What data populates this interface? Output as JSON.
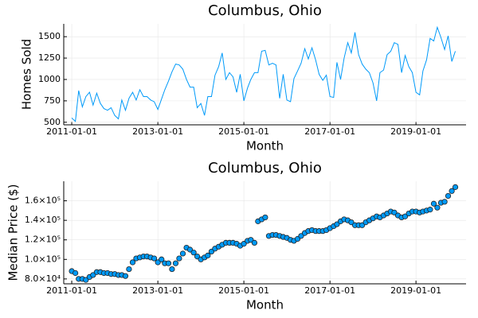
{
  "chart_data": [
    {
      "type": "line",
      "title": "Columbus, Ohio",
      "x_label": "Month",
      "y_label": "Homes Sold",
      "color": "#009af9",
      "grid": true,
      "x": [
        "2011-01-01",
        "2011-02-01",
        "2011-03-01",
        "2011-04-01",
        "2011-05-01",
        "2011-06-01",
        "2011-07-01",
        "2011-08-01",
        "2011-09-01",
        "2011-10-01",
        "2011-11-01",
        "2011-12-01",
        "2012-01-01",
        "2012-02-01",
        "2012-03-01",
        "2012-04-01",
        "2012-05-01",
        "2012-06-01",
        "2012-07-01",
        "2012-08-01",
        "2012-09-01",
        "2012-10-01",
        "2012-11-01",
        "2012-12-01",
        "2013-01-01",
        "2013-02-01",
        "2013-03-01",
        "2013-04-01",
        "2013-05-01",
        "2013-06-01",
        "2013-07-01",
        "2013-08-01",
        "2013-09-01",
        "2013-10-01",
        "2013-11-01",
        "2013-12-01",
        "2014-01-01",
        "2014-02-01",
        "2014-03-01",
        "2014-04-01",
        "2014-05-01",
        "2014-06-01",
        "2014-07-01",
        "2014-08-01",
        "2014-09-01",
        "2014-10-01",
        "2014-11-01",
        "2014-12-01",
        "2015-01-01",
        "2015-02-01",
        "2015-03-01",
        "2015-04-01",
        "2015-05-01",
        "2015-06-01",
        "2015-07-01",
        "2015-08-01",
        "2015-09-01",
        "2015-10-01",
        "2015-11-01",
        "2015-12-01",
        "2016-01-01",
        "2016-02-01",
        "2016-03-01",
        "2016-04-01",
        "2016-05-01",
        "2016-06-01",
        "2016-07-01",
        "2016-08-01",
        "2016-09-01",
        "2016-10-01",
        "2016-11-01",
        "2016-12-01",
        "2017-01-01",
        "2017-02-01",
        "2017-03-01",
        "2017-04-01",
        "2017-05-01",
        "2017-06-01",
        "2017-07-01",
        "2017-08-01",
        "2017-09-01",
        "2017-10-01",
        "2017-11-01",
        "2017-12-01",
        "2018-01-01",
        "2018-02-01",
        "2018-03-01",
        "2018-04-01",
        "2018-05-01",
        "2018-06-01",
        "2018-07-01",
        "2018-08-01",
        "2018-09-01",
        "2018-10-01",
        "2018-11-01",
        "2018-12-01",
        "2019-01-01",
        "2019-02-01",
        "2019-03-01",
        "2019-04-01",
        "2019-05-01",
        "2019-06-01",
        "2019-07-01",
        "2019-08-01",
        "2019-09-01",
        "2019-10-01",
        "2019-11-01",
        "2019-12-01"
      ],
      "values": [
        550,
        510,
        870,
        680,
        800,
        850,
        700,
        840,
        720,
        660,
        640,
        670,
        580,
        540,
        760,
        640,
        780,
        850,
        760,
        880,
        800,
        800,
        760,
        740,
        650,
        770,
        880,
        980,
        1090,
        1180,
        1170,
        1120,
        1000,
        910,
        910,
        670,
        720,
        580,
        800,
        800,
        1050,
        1150,
        1310,
        1000,
        1080,
        1030,
        850,
        1060,
        750,
        900,
        1000,
        1080,
        1080,
        1330,
        1340,
        1170,
        1190,
        1170,
        780,
        1060,
        760,
        740,
        1010,
        1100,
        1190,
        1360,
        1240,
        1370,
        1230,
        1060,
        990,
        1050,
        800,
        790,
        1200,
        1000,
        1250,
        1430,
        1310,
        1550,
        1290,
        1180,
        1120,
        1080,
        960,
        750,
        1080,
        1110,
        1290,
        1330,
        1430,
        1410,
        1080,
        1280,
        1150,
        1080,
        850,
        820,
        1100,
        1230,
        1480,
        1450,
        1610,
        1490,
        1350,
        1510,
        1210,
        1330
      ],
      "xlim": [
        "2010-10-25",
        "2020-03-01"
      ],
      "xticks": [
        "2011-01-01",
        "2013-01-01",
        "2015-01-01",
        "2017-01-01",
        "2019-01-01"
      ],
      "ylim": [
        470,
        1650
      ],
      "yticks": [
        500,
        750,
        1000,
        1250,
        1500
      ]
    },
    {
      "type": "scatter",
      "title": "Columbus, Ohio",
      "x_label": "Month",
      "y_label": "Median Price ($)",
      "color": "#009af9",
      "grid": true,
      "x": [
        "2011-01-01",
        "2011-02-01",
        "2011-03-01",
        "2011-04-01",
        "2011-05-01",
        "2011-06-01",
        "2011-07-01",
        "2011-08-01",
        "2011-09-01",
        "2011-10-01",
        "2011-11-01",
        "2011-12-01",
        "2012-01-01",
        "2012-02-01",
        "2012-03-01",
        "2012-04-01",
        "2012-05-01",
        "2012-06-01",
        "2012-07-01",
        "2012-08-01",
        "2012-09-01",
        "2012-10-01",
        "2012-11-01",
        "2012-12-01",
        "2013-01-01",
        "2013-02-01",
        "2013-03-01",
        "2013-04-01",
        "2013-05-01",
        "2013-06-01",
        "2013-07-01",
        "2013-08-01",
        "2013-09-01",
        "2013-10-01",
        "2013-11-01",
        "2013-12-01",
        "2014-01-01",
        "2014-02-01",
        "2014-03-01",
        "2014-04-01",
        "2014-05-01",
        "2014-06-01",
        "2014-07-01",
        "2014-08-01",
        "2014-09-01",
        "2014-10-01",
        "2014-11-01",
        "2014-12-01",
        "2015-01-01",
        "2015-02-01",
        "2015-03-01",
        "2015-04-01",
        "2015-05-01",
        "2015-06-01",
        "2015-07-01",
        "2015-08-01",
        "2015-09-01",
        "2015-10-01",
        "2015-11-01",
        "2015-12-01",
        "2016-01-01",
        "2016-02-01",
        "2016-03-01",
        "2016-04-01",
        "2016-05-01",
        "2016-06-01",
        "2016-07-01",
        "2016-08-01",
        "2016-09-01",
        "2016-10-01",
        "2016-11-01",
        "2016-12-01",
        "2017-01-01",
        "2017-02-01",
        "2017-03-01",
        "2017-04-01",
        "2017-05-01",
        "2017-06-01",
        "2017-07-01",
        "2017-08-01",
        "2017-09-01",
        "2017-10-01",
        "2017-11-01",
        "2017-12-01",
        "2018-01-01",
        "2018-02-01",
        "2018-03-01",
        "2018-04-01",
        "2018-05-01",
        "2018-06-01",
        "2018-07-01",
        "2018-08-01",
        "2018-09-01",
        "2018-10-01",
        "2018-11-01",
        "2018-12-01",
        "2019-01-01",
        "2019-02-01",
        "2019-03-01",
        "2019-04-01",
        "2019-05-01",
        "2019-06-01",
        "2019-07-01",
        "2019-08-01",
        "2019-09-01",
        "2019-10-01",
        "2019-11-01",
        "2019-12-01"
      ],
      "values": [
        88000,
        86000,
        80000,
        80000,
        79000,
        82000,
        84000,
        87000,
        87000,
        86000,
        86000,
        85000,
        85000,
        84000,
        84000,
        83000,
        90000,
        97000,
        101000,
        102000,
        103000,
        103000,
        102000,
        101000,
        97000,
        100000,
        96000,
        96000,
        90000,
        96000,
        101000,
        106000,
        112000,
        110000,
        107000,
        103000,
        100000,
        102000,
        104000,
        108000,
        111000,
        113000,
        115000,
        117000,
        117000,
        117000,
        116000,
        114000,
        116000,
        119000,
        120000,
        117000,
        139000,
        141000,
        143000,
        124000,
        125000,
        125000,
        124000,
        123000,
        122000,
        120000,
        119000,
        121000,
        124000,
        127000,
        129000,
        130000,
        129000,
        129000,
        129000,
        130000,
        132000,
        134000,
        136000,
        139000,
        141000,
        140000,
        138000,
        135000,
        135000,
        135000,
        138000,
        140000,
        142000,
        144000,
        143000,
        145000,
        147000,
        149000,
        148000,
        145000,
        143000,
        144000,
        147000,
        149000,
        149000,
        148000,
        149000,
        150000,
        151000,
        157000,
        153000,
        158000,
        159000,
        165000,
        170000,
        174000
      ],
      "xlim": [
        "2010-10-25",
        "2020-03-01"
      ],
      "xticks": [
        "2011-01-01",
        "2013-01-01",
        "2015-01-01",
        "2017-01-01",
        "2019-01-01"
      ],
      "ylim": [
        75000,
        180000
      ],
      "yticks": [
        {
          "value": 80000,
          "label": "8.0×10⁴"
        },
        {
          "value": 100000,
          "label": "1.0×10⁵"
        },
        {
          "value": 120000,
          "label": "1.2×10⁵"
        },
        {
          "value": 140000,
          "label": "1.4×10⁵"
        },
        {
          "value": 160000,
          "label": "1.6×10⁵"
        }
      ]
    }
  ]
}
